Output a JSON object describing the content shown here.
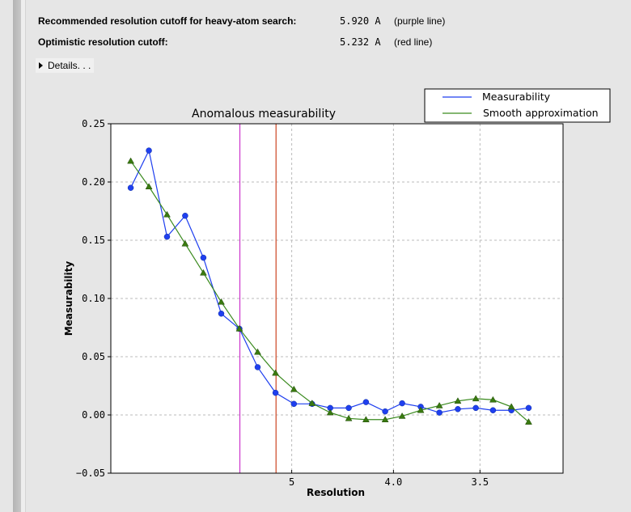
{
  "summary": {
    "recommended": {
      "label": "Recommended resolution cutoff for heavy-atom search:",
      "value": "5.920 A",
      "note": "(purple line)"
    },
    "optimistic": {
      "label": "Optimistic resolution cutoff:",
      "value": "5.232 A",
      "note": "(red line)"
    },
    "details_label": "Details. . ."
  },
  "chart_data": {
    "type": "line",
    "title": "Anomalous measurability",
    "xlabel": "Resolution",
    "ylabel": "Measurability",
    "x_scale": "1/d^2 (reciprocal-square resolution)",
    "xlim_resolution": [
      "inf",
      3.16
    ],
    "ylim": [
      -0.05,
      0.25
    ],
    "yticks": [
      "0.25",
      "0.20",
      "0.15",
      "0.10",
      "0.05",
      "0.00",
      "−0.05"
    ],
    "ytick_values": [
      0.25,
      0.2,
      0.15,
      0.1,
      0.05,
      0.0,
      -0.05
    ],
    "xticks": [
      "5",
      "4.0",
      "3.5"
    ],
    "xtick_values": [
      5,
      4.0,
      3.5
    ],
    "grid": true,
    "legend_placement": "top-right (outside above plot)",
    "x": [
      15.08,
      10.9,
      8.97,
      7.8,
      6.99,
      6.4,
      5.93,
      5.55,
      5.24,
      4.97,
      4.74,
      4.54,
      4.36,
      4.21,
      4.06,
      3.94,
      3.82,
      3.71,
      3.61,
      3.52,
      3.44,
      3.36,
      3.29
    ],
    "series": [
      {
        "name": "Measurability",
        "color": "#1f3fef",
        "marker": "circle",
        "values": [
          0.195,
          0.227,
          0.153,
          0.171,
          0.135,
          0.087,
          0.074,
          0.041,
          0.019,
          0.0095,
          0.0095,
          0.006,
          0.006,
          0.011,
          0.003,
          0.01,
          0.007,
          0.002,
          0.005,
          0.006,
          0.004,
          0.004,
          0.006
        ]
      },
      {
        "name": "Smooth approximation",
        "color": "#3a8a1e",
        "marker": "triangle",
        "values": [
          0.218,
          0.196,
          0.172,
          0.147,
          0.122,
          0.097,
          0.074,
          0.054,
          0.036,
          0.022,
          0.01,
          0.002,
          -0.003,
          -0.004,
          -0.004,
          -0.001,
          0.004,
          0.008,
          0.012,
          0.014,
          0.013,
          0.007,
          -0.006
        ]
      }
    ],
    "vlines": [
      {
        "resolution": 5.92,
        "color": "#cc33cc"
      },
      {
        "resolution": 5.232,
        "color": "#cc4422"
      }
    ]
  }
}
